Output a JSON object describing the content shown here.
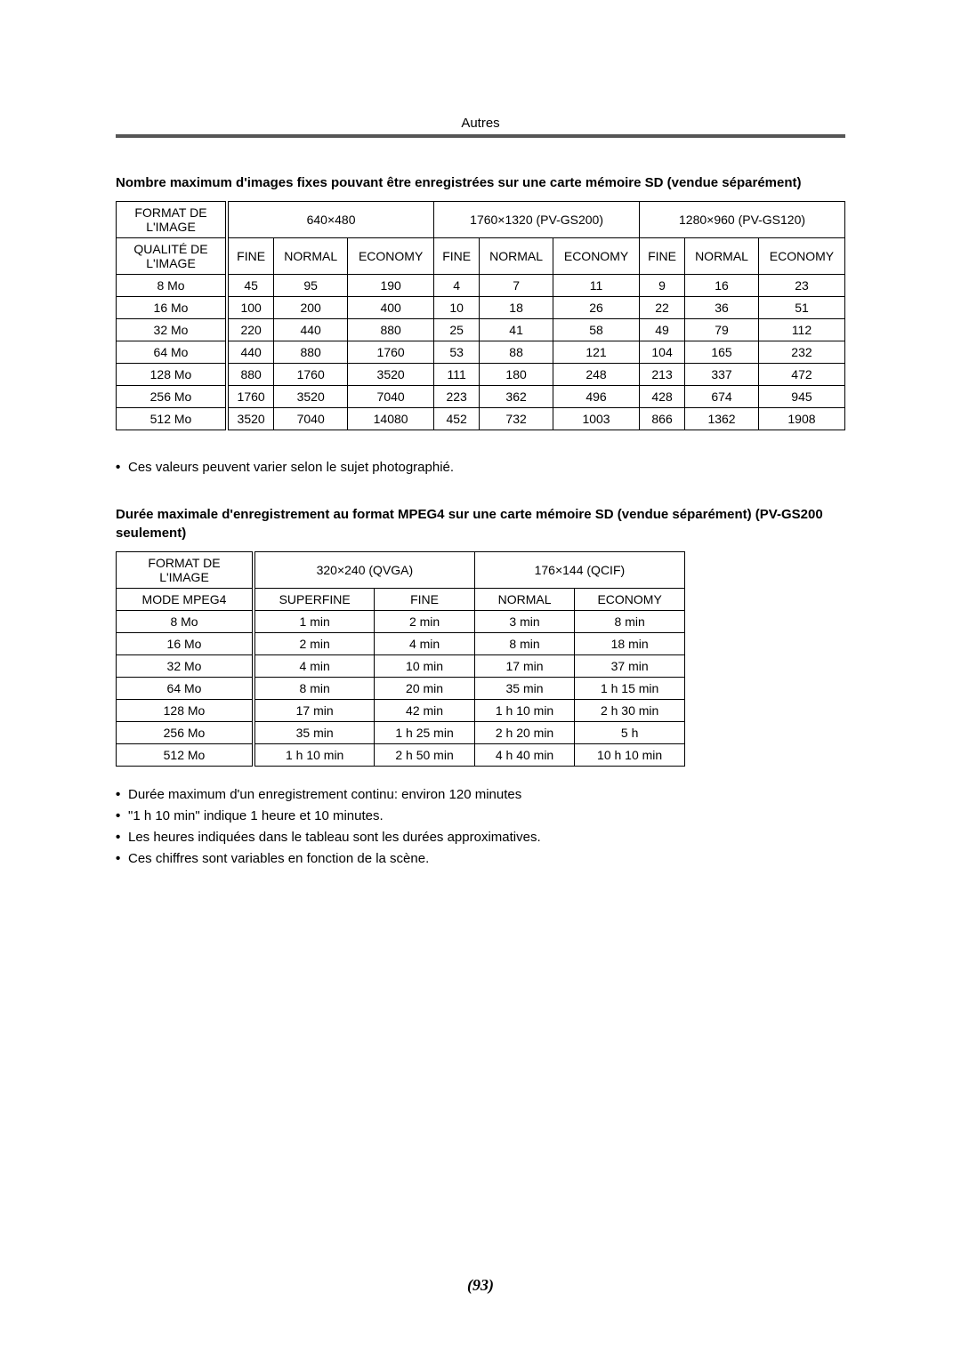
{
  "section_label": "Autres",
  "page_number": "(93)",
  "heading1": "Nombre maximum d'images fixes pouvant être enregistrées sur une carte mémoire SD (vendue séparément)",
  "heading2": "Durée maximale d'enregistrement au format MPEG4 sur une carte mémoire SD (vendue séparément) (PV-GS200 seulement)",
  "table1": {
    "format_label": "FORMAT DE L'IMAGE",
    "quality_label": "QUALITÉ DE L'IMAGE",
    "formats": [
      "640×480",
      "1760×1320 (PV-GS200)",
      "1280×960 (PV-GS120)"
    ],
    "qualities": [
      "FINE",
      "NORMAL",
      "ECONOMY"
    ],
    "rows": [
      {
        "cap": "8 Mo",
        "v": [
          "45",
          "95",
          "190",
          "4",
          "7",
          "11",
          "9",
          "16",
          "23"
        ]
      },
      {
        "cap": "16 Mo",
        "v": [
          "100",
          "200",
          "400",
          "10",
          "18",
          "26",
          "22",
          "36",
          "51"
        ]
      },
      {
        "cap": "32 Mo",
        "v": [
          "220",
          "440",
          "880",
          "25",
          "41",
          "58",
          "49",
          "79",
          "112"
        ]
      },
      {
        "cap": "64 Mo",
        "v": [
          "440",
          "880",
          "1760",
          "53",
          "88",
          "121",
          "104",
          "165",
          "232"
        ]
      },
      {
        "cap": "128 Mo",
        "v": [
          "880",
          "1760",
          "3520",
          "111",
          "180",
          "248",
          "213",
          "337",
          "472"
        ]
      },
      {
        "cap": "256 Mo",
        "v": [
          "1760",
          "3520",
          "7040",
          "223",
          "362",
          "496",
          "428",
          "674",
          "945"
        ]
      },
      {
        "cap": "512 Mo",
        "v": [
          "3520",
          "7040",
          "14080",
          "452",
          "732",
          "1003",
          "866",
          "1362",
          "1908"
        ]
      }
    ]
  },
  "bullets1": [
    "Ces valeurs peuvent varier selon le sujet photographié."
  ],
  "table2": {
    "format_label": "FORMAT DE L'IMAGE",
    "mode_label": "MODE MPEG4",
    "formats": [
      "320×240 (QVGA)",
      "176×144 (QCIF)"
    ],
    "modes": [
      "SUPERFINE",
      "FINE",
      "NORMAL",
      "ECONOMY"
    ],
    "rows": [
      {
        "cap": "8 Mo",
        "v": [
          "1 min",
          "2 min",
          "3 min",
          "8 min"
        ]
      },
      {
        "cap": "16 Mo",
        "v": [
          "2 min",
          "4 min",
          "8 min",
          "18 min"
        ]
      },
      {
        "cap": "32 Mo",
        "v": [
          "4 min",
          "10 min",
          "17 min",
          "37 min"
        ]
      },
      {
        "cap": "64 Mo",
        "v": [
          "8 min",
          "20 min",
          "35 min",
          "1 h 15 min"
        ]
      },
      {
        "cap": "128 Mo",
        "v": [
          "17 min",
          "42 min",
          "1 h 10 min",
          "2 h 30 min"
        ]
      },
      {
        "cap": "256 Mo",
        "v": [
          "35 min",
          "1 h 25 min",
          "2 h 20 min",
          "5 h"
        ]
      },
      {
        "cap": "512 Mo",
        "v": [
          "1 h 10 min",
          "2 h 50 min",
          "4 h 40 min",
          "10 h 10 min"
        ]
      }
    ]
  },
  "bullets2": [
    "Durée maximum d'un enregistrement continu:  environ 120 minutes",
    "\"1 h 10 min\" indique 1 heure et 10 minutes.",
    "Les heures indiquées dans le tableau sont les durées approximatives.",
    "Ces chiffres sont variables en fonction de la scène."
  ],
  "colors": {
    "rule": "#555555",
    "text": "#000000",
    "background": "#ffffff"
  }
}
